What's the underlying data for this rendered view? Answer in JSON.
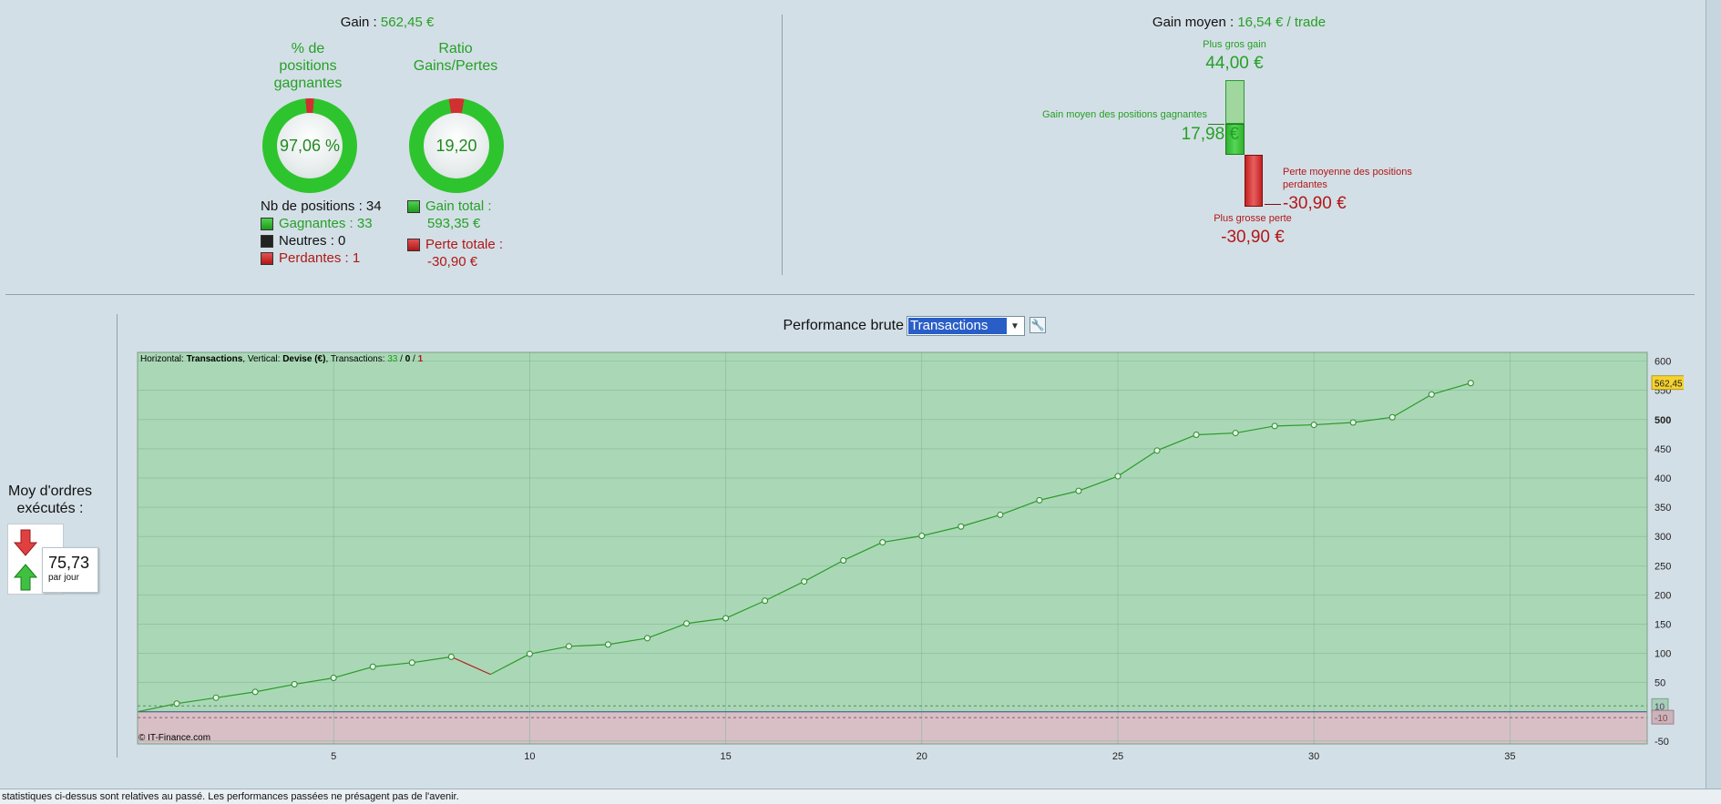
{
  "summary": {
    "gain_label": "Gain :",
    "gain_value": "562,45 €",
    "pct_label": "% de\npositions\ngagnantes",
    "pct_value": "97,06 %",
    "pct_fraction": 0.9706,
    "ratio_label": "Ratio\nGains/Pertes",
    "ratio_value": "19,20",
    "nb_positions": "Nb de positions : 34",
    "gagnantes": "Gagnantes : 33",
    "neutres": "Neutres : 0",
    "perdantes": "Perdantes : 1",
    "gain_total_label": "Gain total :",
    "gain_total_value": "593,35 €",
    "perte_totale_label": "Perte totale :",
    "perte_totale_value": "-30,90 €"
  },
  "average": {
    "title_label": "Gain moyen :",
    "title_value": "16,54 € / trade",
    "plus_gros_gain_label": "Plus gros gain",
    "plus_gros_gain_value": "44,00 €",
    "gain_moyen_label": "Gain moyen des positions gagnantes",
    "gain_moyen_value": "17,98 €",
    "perte_moyenne_label_1": "Perte moyenne des positions",
    "perte_moyenne_label_2": "perdantes",
    "perte_moyenne_value": "-30,90 €",
    "plus_grosse_perte_label": "Plus grosse perte",
    "plus_grosse_perte_value": "-30,90 €"
  },
  "orders": {
    "title": "Moy d'ordres\nexécutés :",
    "value": "75,73",
    "unit": "par jour"
  },
  "performance": {
    "label": "Performance brute",
    "selected": "Transactions",
    "settings_icon": "wrench-icon"
  },
  "chart_data": {
    "type": "line",
    "header": {
      "h_label": "Horizontal: ",
      "h_value": "Transactions",
      "v_label": ", Vertical: ",
      "v_value": "Devise (€)",
      "t_label": ", Transactions: ",
      "t_win": "33",
      "t_sep1": " / ",
      "t_neutral": "0",
      "t_sep2": " / ",
      "t_loss": "1"
    },
    "copyright": "© IT-Finance.com",
    "x": [
      0,
      1,
      2,
      3,
      4,
      5,
      6,
      7,
      8,
      9,
      10,
      11,
      12,
      13,
      14,
      15,
      16,
      17,
      18,
      19,
      20,
      21,
      22,
      23,
      24,
      25,
      26,
      27,
      28,
      29,
      30,
      31,
      32,
      33,
      34
    ],
    "y": [
      0,
      14,
      24,
      34,
      47,
      58,
      77,
      84,
      94,
      64,
      99,
      112,
      115,
      126,
      151,
      160,
      190,
      223,
      259,
      290,
      301,
      317,
      337,
      362,
      378,
      403,
      447,
      474,
      477,
      489,
      491,
      495,
      504,
      543,
      562.45
    ],
    "losing_segments": [
      8
    ],
    "xlim": [
      0,
      38.5
    ],
    "ylim": [
      -55,
      615
    ],
    "x_ticks": [
      "5",
      "10",
      "15",
      "20",
      "25",
      "30",
      "35"
    ],
    "y_ticks": [
      "600",
      "550",
      "500",
      "450",
      "400",
      "350",
      "300",
      "250",
      "200",
      "150",
      "100",
      "50",
      "-50"
    ],
    "bold_tick": "500",
    "last_value": "562,45",
    "ref_upper": 10,
    "ref_lower": -10,
    "ref_upper_label": "10",
    "ref_lower_label": "-10",
    "colors": {
      "positive_bg": "#aad8b6",
      "negative_bg": "#d8bfc6",
      "line_up": "#2a9a2a",
      "line_down": "#b02020",
      "grid": "#86b898"
    }
  },
  "footer": {
    "text": "statistiques ci-dessus sont relatives au passé. Les performances passées ne présagent pas de l'avenir."
  }
}
